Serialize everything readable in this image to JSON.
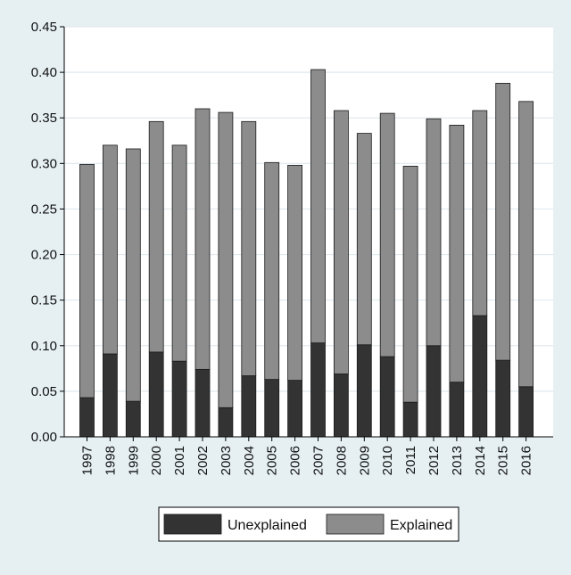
{
  "chart_data": {
    "type": "bar",
    "stacked": true,
    "categories": [
      "1997",
      "1998",
      "1999",
      "2000",
      "2001",
      "2002",
      "2003",
      "2004",
      "2005",
      "2006",
      "2007",
      "2008",
      "2009",
      "2010",
      "2011",
      "2012",
      "2013",
      "2014",
      "2015",
      "2016"
    ],
    "series": [
      {
        "name": "Unexplained",
        "color": "#333333",
        "values": [
          0.043,
          0.091,
          0.039,
          0.093,
          0.083,
          0.074,
          0.032,
          0.067,
          0.063,
          0.062,
          0.103,
          0.069,
          0.101,
          0.088,
          0.038,
          0.1,
          0.06,
          0.133,
          0.084,
          0.055
        ]
      },
      {
        "name": "Explained",
        "color": "#8c8c8c",
        "values": [
          0.256,
          0.229,
          0.277,
          0.253,
          0.237,
          0.286,
          0.324,
          0.279,
          0.238,
          0.236,
          0.3,
          0.289,
          0.232,
          0.267,
          0.259,
          0.249,
          0.282,
          0.225,
          0.304,
          0.313
        ]
      }
    ],
    "y_ticks": [
      "0.00",
      "0.05",
      "0.10",
      "0.15",
      "0.20",
      "0.25",
      "0.30",
      "0.35",
      "0.40",
      "0.45"
    ],
    "ylim": [
      0,
      0.45
    ],
    "grid": true,
    "legend_position": "bottom",
    "title": "",
    "xlabel": "",
    "ylabel": ""
  }
}
